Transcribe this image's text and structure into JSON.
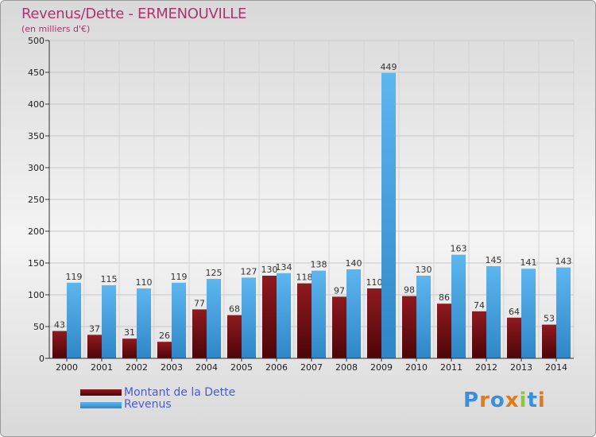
{
  "title": "Revenus/Dette - ERMENOUVILLE",
  "subtitle": "(en milliers d'€)",
  "logo": "Proxiti",
  "colors": {
    "dette": "#7a0c12",
    "revenus": "#4ea8e6",
    "title": "#b0336e",
    "legend_text": "#4a5adc"
  },
  "chart_data": {
    "type": "bar",
    "title": "Revenus/Dette - ERMENOUVILLE",
    "ylabel": "",
    "xlabel": "",
    "ylim": [
      0,
      500
    ],
    "yticks": [
      0,
      50,
      100,
      150,
      200,
      250,
      300,
      350,
      400,
      450,
      500
    ],
    "grid": true,
    "legend": "bottom-left",
    "categories": [
      "2000",
      "2001",
      "2002",
      "2003",
      "2004",
      "2005",
      "2006",
      "2007",
      "2008",
      "2009",
      "2010",
      "2011",
      "2012",
      "2013",
      "2014"
    ],
    "series": [
      {
        "name": "Montant de la Dette",
        "values": [
          43,
          37,
          31,
          26,
          77,
          68,
          130,
          118,
          97,
          110,
          98,
          86,
          74,
          64,
          53
        ]
      },
      {
        "name": "Revenus",
        "values": [
          119,
          115,
          110,
          119,
          125,
          127,
          134,
          138,
          140,
          449,
          130,
          163,
          145,
          141,
          143
        ]
      }
    ]
  }
}
